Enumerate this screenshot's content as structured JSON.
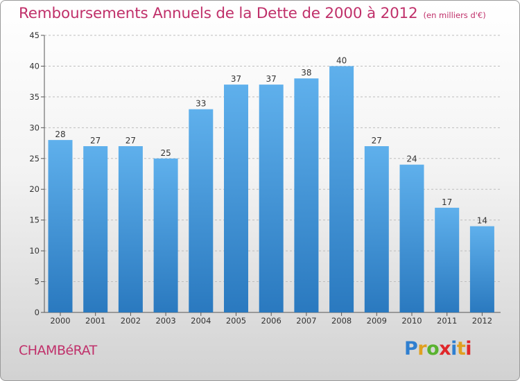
{
  "header": {
    "title": "Remboursements Annuels de la Dette de 2000 à 2012",
    "subtitle": "(en milliers d'€)"
  },
  "footer": {
    "town": "CHAMBéRAT",
    "brand": "Proxiti",
    "brand_colors": [
      "#2f7fd0",
      "#e0a020",
      "#59b22f",
      "#e0272a",
      "#2f7fd0",
      "#e0a020",
      "#e0272a"
    ]
  },
  "colors": {
    "title": "#c0306a",
    "bar_light": "#5fb0ec",
    "bar_dark": "#2a79bf",
    "grid": "#bdbdbd"
  },
  "chart_data": {
    "type": "bar",
    "title": "Remboursements Annuels de la Dette de 2000 à 2012",
    "subtitle": "(en milliers d'€)",
    "categories": [
      "2000",
      "2001",
      "2002",
      "2003",
      "2004",
      "2005",
      "2006",
      "2007",
      "2008",
      "2009",
      "2010",
      "2011",
      "2012"
    ],
    "values": [
      28,
      27,
      27,
      25,
      33,
      37,
      37,
      38,
      40,
      27,
      24,
      17,
      14
    ],
    "ylim": [
      0,
      45
    ],
    "yticks": [
      0,
      5,
      10,
      15,
      20,
      25,
      30,
      35,
      40,
      45
    ],
    "grid": true,
    "data_labels": true
  }
}
